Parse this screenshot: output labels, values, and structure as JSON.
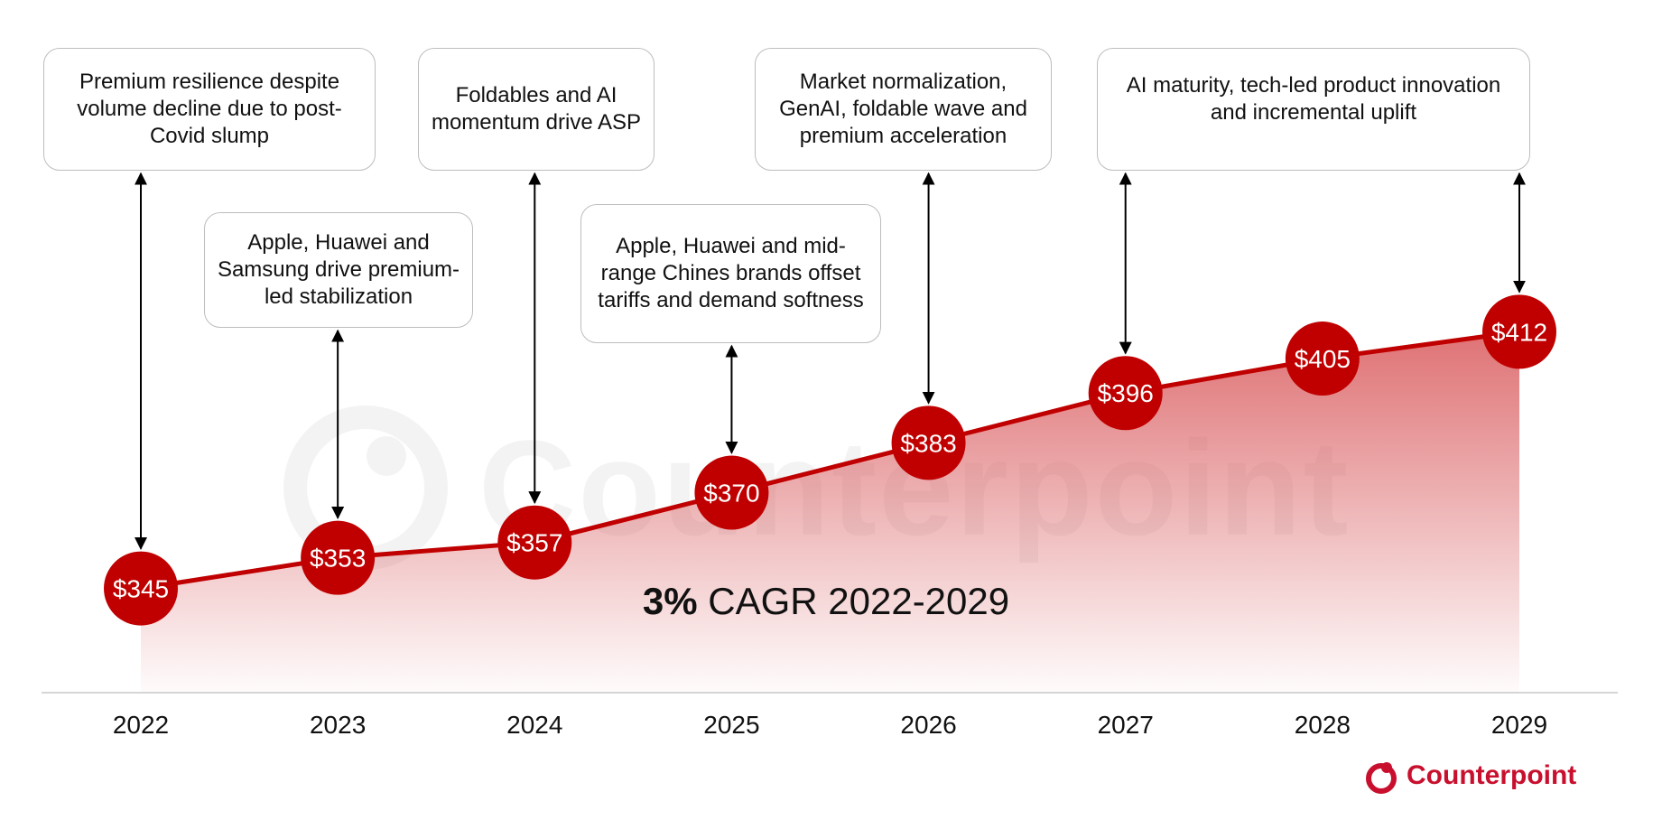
{
  "chart_data": {
    "type": "line",
    "title": "",
    "xlabel": "",
    "ylabel": "",
    "categories": [
      "2022",
      "2023",
      "2024",
      "2025",
      "2026",
      "2027",
      "2028",
      "2029"
    ],
    "values": [
      345,
      353,
      357,
      370,
      383,
      396,
      405,
      412
    ],
    "value_labels": [
      "$345",
      "$353",
      "$357",
      "$370",
      "$383",
      "$396",
      "$405",
      "$412"
    ],
    "ylim": [
      300,
      430
    ],
    "grid": false,
    "area_fill": true,
    "colors": {
      "line": "#c00000",
      "marker": "#c00000",
      "marker_text": "#ffffff",
      "area_top": "#d9595c",
      "baseline": "#c8c8c8"
    },
    "annotations": [
      {
        "year": "2022",
        "text": "Premium resilience despite volume decline due to post-Covid slump"
      },
      {
        "year": "2023",
        "text": "Apple, Huawei and Samsung drive premium-led stabilization"
      },
      {
        "year": "2024",
        "text": "Foldables and AI momentum drive ASP"
      },
      {
        "year": "2025",
        "text": "Apple, Huawei and mid-range Chines brands offset tariffs and demand softness"
      },
      {
        "year": "2026",
        "text": "Market normalization, GenAI, foldable wave and premium acceleration"
      },
      {
        "year": "2027_2029",
        "text": "AI maturity, tech-led product innovation and incremental uplift"
      }
    ],
    "cagr": {
      "strong": "3%",
      "rest": " CAGR 2022-2029"
    }
  },
  "branding": {
    "logo_text": "Counterpoint",
    "logo_icon": "counterpoint-logo-icon",
    "brand_color": "#c8102e",
    "watermark_text": "Counterpoint"
  }
}
